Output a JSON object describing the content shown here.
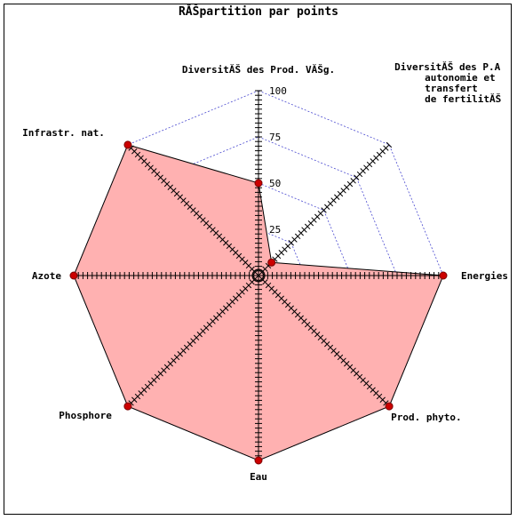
{
  "chart_data": {
    "type": "radar",
    "title": "RĂŠpartition par points",
    "axes": [
      {
        "label": [
          "DiversitĂŠ des Prod. VĂŠg."
        ],
        "value": 50
      },
      {
        "label": [
          "DiversitĂŠ des P.A",
          "autonomie et",
          "transfert",
          "de fertilitĂŠ"
        ],
        "value": 10
      },
      {
        "label": [
          "Energies"
        ],
        "value": 100
      },
      {
        "label": [
          "Prod. phyto."
        ],
        "value": 100
      },
      {
        "label": [
          "Eau"
        ],
        "value": 100
      },
      {
        "label": [
          "Phosphore"
        ],
        "value": 100
      },
      {
        "label": [
          "Azote"
        ],
        "value": 100
      },
      {
        "label": [
          "Infrastr. nat."
        ],
        "value": 100
      }
    ],
    "scale": {
      "min": 0,
      "max": 100,
      "ticks": [
        25,
        50,
        75,
        100
      ]
    },
    "colors": {
      "fill": "#ffb1b1",
      "outline": "#000000",
      "grid": "#4a4ad0",
      "point": "#cc0000"
    }
  }
}
